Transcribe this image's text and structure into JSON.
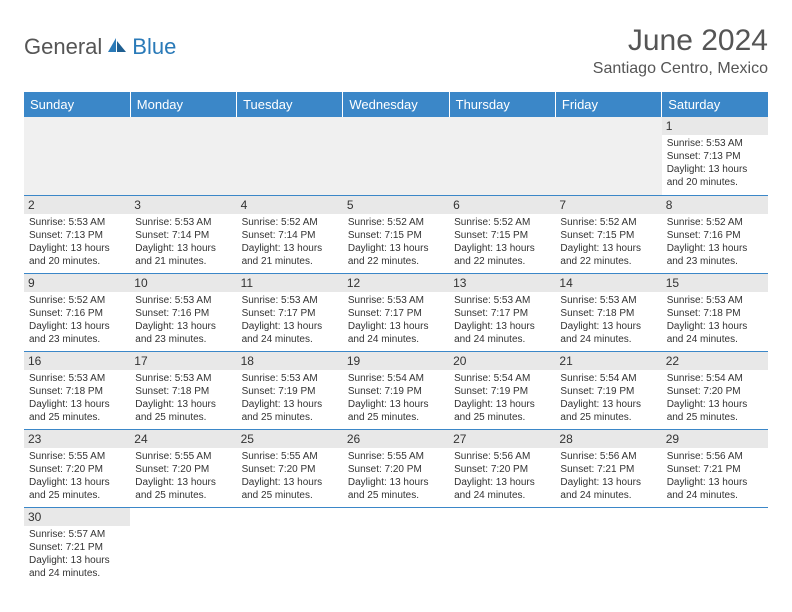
{
  "logo": {
    "general": "General",
    "blue": "Blue"
  },
  "title": "June 2024",
  "location": "Santiago Centro, Mexico",
  "dayHeaders": [
    "Sunday",
    "Monday",
    "Tuesday",
    "Wednesday",
    "Thursday",
    "Friday",
    "Saturday"
  ],
  "colors": {
    "headerBg": "#3b87c8",
    "headerText": "#ffffff",
    "dayStripe": "#e8e8e8",
    "emptyBg": "#f0f0f0",
    "border": "#3b87c8",
    "titleColor": "#555555",
    "logoBlue": "#2a7ab8"
  },
  "weeks": [
    [
      null,
      null,
      null,
      null,
      null,
      null,
      {
        "n": "1",
        "sr": "Sunrise: 5:53 AM",
        "ss": "Sunset: 7:13 PM",
        "d1": "Daylight: 13 hours",
        "d2": "and 20 minutes."
      }
    ],
    [
      {
        "n": "2",
        "sr": "Sunrise: 5:53 AM",
        "ss": "Sunset: 7:13 PM",
        "d1": "Daylight: 13 hours",
        "d2": "and 20 minutes."
      },
      {
        "n": "3",
        "sr": "Sunrise: 5:53 AM",
        "ss": "Sunset: 7:14 PM",
        "d1": "Daylight: 13 hours",
        "d2": "and 21 minutes."
      },
      {
        "n": "4",
        "sr": "Sunrise: 5:52 AM",
        "ss": "Sunset: 7:14 PM",
        "d1": "Daylight: 13 hours",
        "d2": "and 21 minutes."
      },
      {
        "n": "5",
        "sr": "Sunrise: 5:52 AM",
        "ss": "Sunset: 7:15 PM",
        "d1": "Daylight: 13 hours",
        "d2": "and 22 minutes."
      },
      {
        "n": "6",
        "sr": "Sunrise: 5:52 AM",
        "ss": "Sunset: 7:15 PM",
        "d1": "Daylight: 13 hours",
        "d2": "and 22 minutes."
      },
      {
        "n": "7",
        "sr": "Sunrise: 5:52 AM",
        "ss": "Sunset: 7:15 PM",
        "d1": "Daylight: 13 hours",
        "d2": "and 22 minutes."
      },
      {
        "n": "8",
        "sr": "Sunrise: 5:52 AM",
        "ss": "Sunset: 7:16 PM",
        "d1": "Daylight: 13 hours",
        "d2": "and 23 minutes."
      }
    ],
    [
      {
        "n": "9",
        "sr": "Sunrise: 5:52 AM",
        "ss": "Sunset: 7:16 PM",
        "d1": "Daylight: 13 hours",
        "d2": "and 23 minutes."
      },
      {
        "n": "10",
        "sr": "Sunrise: 5:53 AM",
        "ss": "Sunset: 7:16 PM",
        "d1": "Daylight: 13 hours",
        "d2": "and 23 minutes."
      },
      {
        "n": "11",
        "sr": "Sunrise: 5:53 AM",
        "ss": "Sunset: 7:17 PM",
        "d1": "Daylight: 13 hours",
        "d2": "and 24 minutes."
      },
      {
        "n": "12",
        "sr": "Sunrise: 5:53 AM",
        "ss": "Sunset: 7:17 PM",
        "d1": "Daylight: 13 hours",
        "d2": "and 24 minutes."
      },
      {
        "n": "13",
        "sr": "Sunrise: 5:53 AM",
        "ss": "Sunset: 7:17 PM",
        "d1": "Daylight: 13 hours",
        "d2": "and 24 minutes."
      },
      {
        "n": "14",
        "sr": "Sunrise: 5:53 AM",
        "ss": "Sunset: 7:18 PM",
        "d1": "Daylight: 13 hours",
        "d2": "and 24 minutes."
      },
      {
        "n": "15",
        "sr": "Sunrise: 5:53 AM",
        "ss": "Sunset: 7:18 PM",
        "d1": "Daylight: 13 hours",
        "d2": "and 24 minutes."
      }
    ],
    [
      {
        "n": "16",
        "sr": "Sunrise: 5:53 AM",
        "ss": "Sunset: 7:18 PM",
        "d1": "Daylight: 13 hours",
        "d2": "and 25 minutes."
      },
      {
        "n": "17",
        "sr": "Sunrise: 5:53 AM",
        "ss": "Sunset: 7:18 PM",
        "d1": "Daylight: 13 hours",
        "d2": "and 25 minutes."
      },
      {
        "n": "18",
        "sr": "Sunrise: 5:53 AM",
        "ss": "Sunset: 7:19 PM",
        "d1": "Daylight: 13 hours",
        "d2": "and 25 minutes."
      },
      {
        "n": "19",
        "sr": "Sunrise: 5:54 AM",
        "ss": "Sunset: 7:19 PM",
        "d1": "Daylight: 13 hours",
        "d2": "and 25 minutes."
      },
      {
        "n": "20",
        "sr": "Sunrise: 5:54 AM",
        "ss": "Sunset: 7:19 PM",
        "d1": "Daylight: 13 hours",
        "d2": "and 25 minutes."
      },
      {
        "n": "21",
        "sr": "Sunrise: 5:54 AM",
        "ss": "Sunset: 7:19 PM",
        "d1": "Daylight: 13 hours",
        "d2": "and 25 minutes."
      },
      {
        "n": "22",
        "sr": "Sunrise: 5:54 AM",
        "ss": "Sunset: 7:20 PM",
        "d1": "Daylight: 13 hours",
        "d2": "and 25 minutes."
      }
    ],
    [
      {
        "n": "23",
        "sr": "Sunrise: 5:55 AM",
        "ss": "Sunset: 7:20 PM",
        "d1": "Daylight: 13 hours",
        "d2": "and 25 minutes."
      },
      {
        "n": "24",
        "sr": "Sunrise: 5:55 AM",
        "ss": "Sunset: 7:20 PM",
        "d1": "Daylight: 13 hours",
        "d2": "and 25 minutes."
      },
      {
        "n": "25",
        "sr": "Sunrise: 5:55 AM",
        "ss": "Sunset: 7:20 PM",
        "d1": "Daylight: 13 hours",
        "d2": "and 25 minutes."
      },
      {
        "n": "26",
        "sr": "Sunrise: 5:55 AM",
        "ss": "Sunset: 7:20 PM",
        "d1": "Daylight: 13 hours",
        "d2": "and 25 minutes."
      },
      {
        "n": "27",
        "sr": "Sunrise: 5:56 AM",
        "ss": "Sunset: 7:20 PM",
        "d1": "Daylight: 13 hours",
        "d2": "and 24 minutes."
      },
      {
        "n": "28",
        "sr": "Sunrise: 5:56 AM",
        "ss": "Sunset: 7:21 PM",
        "d1": "Daylight: 13 hours",
        "d2": "and 24 minutes."
      },
      {
        "n": "29",
        "sr": "Sunrise: 5:56 AM",
        "ss": "Sunset: 7:21 PM",
        "d1": "Daylight: 13 hours",
        "d2": "and 24 minutes."
      }
    ],
    [
      {
        "n": "30",
        "sr": "Sunrise: 5:57 AM",
        "ss": "Sunset: 7:21 PM",
        "d1": "Daylight: 13 hours",
        "d2": "and 24 minutes."
      },
      null,
      null,
      null,
      null,
      null,
      null
    ]
  ]
}
